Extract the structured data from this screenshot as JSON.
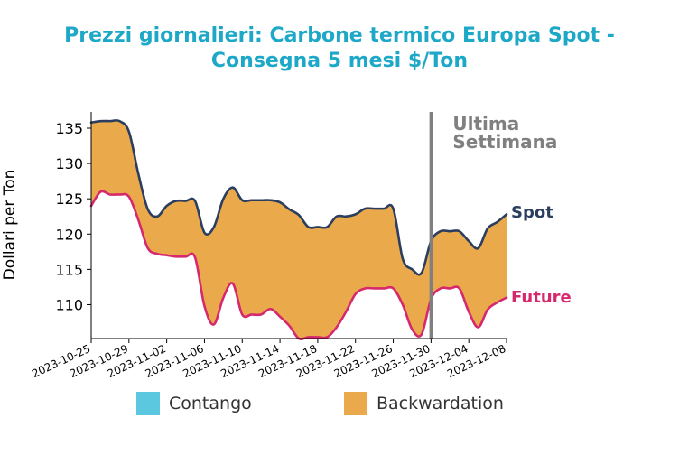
{
  "chart_data": {
    "type": "area",
    "title_line1": "Prezzi giornalieri: Carbone termico Europa Spot -",
    "title_line2": "Consegna 5 mesi $/Ton",
    "xlabel": "",
    "ylabel": "Dollari per Ton",
    "ylim": [
      105.2,
      137.3
    ],
    "y_ticks": [
      110,
      115,
      120,
      125,
      130,
      135
    ],
    "x_tick_labels": [
      "2023-10-25",
      "2023-10-29",
      "2023-11-02",
      "2023-11-06",
      "2023-11-10",
      "2023-11-14",
      "2023-11-18",
      "2023-11-22",
      "2023-11-26",
      "2023-11-30",
      "2023-12-04",
      "2023-12-08"
    ],
    "x_start": "2023-10-25",
    "x_end": "2023-12-08",
    "series": [
      {
        "name": "Spot",
        "color": "#2c3e5f",
        "points": [
          [
            "2023-10-25",
            135.8
          ],
          [
            "2023-10-26",
            136.0
          ],
          [
            "2023-10-27",
            136.0
          ],
          [
            "2023-10-28",
            136.0
          ],
          [
            "2023-10-29",
            134.5
          ],
          [
            "2023-10-30",
            128.5
          ],
          [
            "2023-10-31",
            123.5
          ],
          [
            "2023-11-01",
            122.5
          ],
          [
            "2023-11-02",
            124.0
          ],
          [
            "2023-11-03",
            124.7
          ],
          [
            "2023-11-04",
            124.7
          ],
          [
            "2023-11-05",
            124.7
          ],
          [
            "2023-11-06",
            120.2
          ],
          [
            "2023-11-07",
            121.0
          ],
          [
            "2023-11-08",
            125.0
          ],
          [
            "2023-11-09",
            126.6
          ],
          [
            "2023-11-10",
            124.8
          ],
          [
            "2023-11-11",
            124.8
          ],
          [
            "2023-11-12",
            124.8
          ],
          [
            "2023-11-13",
            124.8
          ],
          [
            "2023-11-14",
            124.5
          ],
          [
            "2023-11-15",
            123.5
          ],
          [
            "2023-11-16",
            122.7
          ],
          [
            "2023-11-17",
            121.0
          ],
          [
            "2023-11-18",
            121.0
          ],
          [
            "2023-11-19",
            121.0
          ],
          [
            "2023-11-20",
            122.5
          ],
          [
            "2023-11-21",
            122.5
          ],
          [
            "2023-11-22",
            122.8
          ],
          [
            "2023-11-23",
            123.6
          ],
          [
            "2023-11-24",
            123.6
          ],
          [
            "2023-11-25",
            123.6
          ],
          [
            "2023-11-26",
            123.6
          ],
          [
            "2023-11-27",
            116.5
          ],
          [
            "2023-11-28",
            115.0
          ],
          [
            "2023-11-29",
            114.5
          ],
          [
            "2023-11-30",
            119.0
          ],
          [
            "2023-12-01",
            120.4
          ],
          [
            "2023-12-02",
            120.4
          ],
          [
            "2023-12-03",
            120.4
          ],
          [
            "2023-12-04",
            119.0
          ],
          [
            "2023-12-05",
            118.0
          ],
          [
            "2023-12-06",
            120.8
          ],
          [
            "2023-12-07",
            121.7
          ],
          [
            "2023-12-08",
            122.8
          ]
        ]
      },
      {
        "name": "Future",
        "color": "#d6286d",
        "points": [
          [
            "2023-10-25",
            124.0
          ],
          [
            "2023-10-26",
            126.0
          ],
          [
            "2023-10-27",
            125.6
          ],
          [
            "2023-10-28",
            125.6
          ],
          [
            "2023-10-29",
            125.3
          ],
          [
            "2023-10-30",
            122.0
          ],
          [
            "2023-10-31",
            118.0
          ],
          [
            "2023-11-01",
            117.2
          ],
          [
            "2023-11-02",
            117.0
          ],
          [
            "2023-11-03",
            116.8
          ],
          [
            "2023-11-04",
            116.8
          ],
          [
            "2023-11-05",
            116.7
          ],
          [
            "2023-11-06",
            109.8
          ],
          [
            "2023-11-07",
            107.2
          ],
          [
            "2023-11-08",
            111.0
          ],
          [
            "2023-11-09",
            113.0
          ],
          [
            "2023-11-10",
            108.6
          ],
          [
            "2023-11-11",
            108.6
          ],
          [
            "2023-11-12",
            108.6
          ],
          [
            "2023-11-13",
            109.4
          ],
          [
            "2023-11-14",
            108.3
          ],
          [
            "2023-11-15",
            107.0
          ],
          [
            "2023-11-16",
            105.2
          ],
          [
            "2023-11-17",
            105.4
          ],
          [
            "2023-11-18",
            105.4
          ],
          [
            "2023-11-19",
            105.4
          ],
          [
            "2023-11-20",
            106.8
          ],
          [
            "2023-11-21",
            109.0
          ],
          [
            "2023-11-22",
            111.5
          ],
          [
            "2023-11-23",
            112.3
          ],
          [
            "2023-11-24",
            112.3
          ],
          [
            "2023-11-25",
            112.3
          ],
          [
            "2023-11-26",
            112.3
          ],
          [
            "2023-11-27",
            110.0
          ],
          [
            "2023-11-28",
            106.5
          ],
          [
            "2023-11-29",
            105.8
          ],
          [
            "2023-11-30",
            110.8
          ],
          [
            "2023-12-01",
            112.3
          ],
          [
            "2023-12-02",
            112.3
          ],
          [
            "2023-12-03",
            112.3
          ],
          [
            "2023-12-04",
            109.0
          ],
          [
            "2023-12-05",
            106.8
          ],
          [
            "2023-12-06",
            109.3
          ],
          [
            "2023-12-07",
            110.3
          ],
          [
            "2023-12-08",
            111.0
          ]
        ]
      }
    ],
    "fill_colors": {
      "Contango": "#5bc8e0",
      "Backwardation": "#eaaa4c"
    },
    "last_week": {
      "date": "2023-11-30",
      "label_line1": "Ultima",
      "label_line2": "Settimana",
      "color": "#808080"
    },
    "grid": false
  },
  "legend": {
    "contango": "Contango",
    "backwardation": "Backwardation"
  }
}
